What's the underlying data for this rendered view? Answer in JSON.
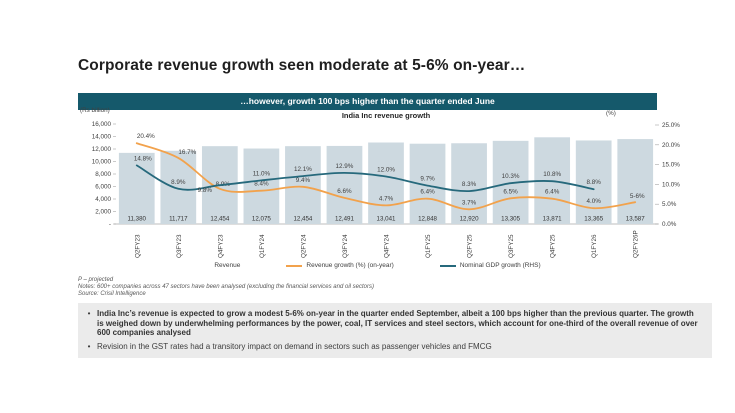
{
  "page_title": "Corporate revenue growth seen moderate at 5-6% on-year…",
  "banner_text": "…however, growth 100 bps higher than the quarter ended June",
  "chart_header": {
    "title": "India Inc revenue growth",
    "left_unit": "(Rs billion)",
    "right_unit": "(%)"
  },
  "chart_data": {
    "type": "bar",
    "title": "India Inc revenue growth",
    "categories": [
      "Q2FY23",
      "Q3FY23",
      "Q4FY23",
      "Q1FY24",
      "Q2FY24",
      "Q3FY24",
      "Q4FY24",
      "Q1FY25",
      "Q2FY25",
      "Q3FY25",
      "Q4FY25",
      "Q1FY26",
      "Q2FY26P"
    ],
    "left_axis": {
      "unit": "(Rs billion)",
      "range": [
        0,
        16000
      ],
      "ticks": [
        "16,000",
        "14,000",
        "12,000",
        "10,000",
        "8,000",
        "6,000",
        "4,000",
        "2,000",
        "-"
      ]
    },
    "right_axis": {
      "unit": "(%)",
      "range": [
        0,
        25
      ],
      "ticks": [
        "25.0%",
        "20.0%",
        "15.0%",
        "10.0%",
        "5.0%",
        "0.0%"
      ]
    },
    "series": [
      {
        "name": "Revenue",
        "type": "bar",
        "color": "#CDD9E0",
        "values": [
          11380,
          11717,
          12454,
          12075,
          12454,
          12491,
          13041,
          12848,
          12920,
          13305,
          13871,
          13365,
          13587
        ],
        "labels": [
          "11,380",
          "11,717",
          "12,454",
          "12,075",
          "12,454",
          "12,491",
          "13,041",
          "12,848",
          "12,920",
          "13,305",
          "13,871",
          "13,365",
          "13,587"
        ]
      },
      {
        "name": "Revenue growth (%) (on-year)",
        "type": "line",
        "axis": "right",
        "color": "#F2A24C",
        "values": [
          20.4,
          16.7,
          8.9,
          8.4,
          9.4,
          6.6,
          4.7,
          6.4,
          3.7,
          6.5,
          6.4,
          4.0,
          5.5
        ],
        "labels": [
          "20.4%",
          "16.7%",
          "8.9%",
          "8.4%",
          "9.4%",
          "6.6%",
          "4.7%",
          "6.4%",
          "3.7%",
          "6.5%",
          "6.4%",
          "4.0%",
          "5-6%"
        ]
      },
      {
        "name": "Nominal GDP growth (RHS)",
        "type": "line",
        "axis": "right",
        "color": "#26697C",
        "values": [
          14.8,
          8.9,
          9.8,
          11.0,
          12.1,
          12.9,
          12.0,
          9.7,
          8.3,
          10.3,
          10.8,
          8.8,
          null
        ],
        "labels": [
          "14.8%",
          "8.9%",
          "9.8%",
          "11.0%",
          "12.1%",
          "12.9%",
          "12.0%",
          "9.7%",
          "8.3%",
          "10.3%",
          "10.8%",
          "8.8%",
          ""
        ]
      }
    ],
    "legend_position": "bottom",
    "grid": false
  },
  "legend": {
    "revenue": "Revenue",
    "revenue_growth": "Revenue growth (%) (on-year)",
    "gdp_growth": "Nominal GDP growth (RHS)"
  },
  "footnotes": {
    "projected": "P – projected",
    "notes": "Notes: 600+ companies across 47 sectors have been analysed (excluding the financial services and oil sectors)",
    "source": "Source: Crisil Intelligence"
  },
  "commentary": {
    "bullet1": "India Inc’s revenue is expected to grow a modest 5-6% on-year in the quarter ended September, albeit a 100 bps higher than the previous quarter. The growth is weighed down by underwhelming performances by the power, coal, IT services and steel sectors, which account for one-third of the overall revenue of over 600 companies analysed",
    "bullet2": "Revision in the GST rates had a transitory impact on demand in sectors such as passenger vehicles and FMCG"
  },
  "colors": {
    "banner": "#15596B",
    "bar": "#CDD9E0",
    "revenue_growth_line": "#F2A24C",
    "gdp_line": "#26697C",
    "commentary_bg": "#EBEBEB"
  }
}
